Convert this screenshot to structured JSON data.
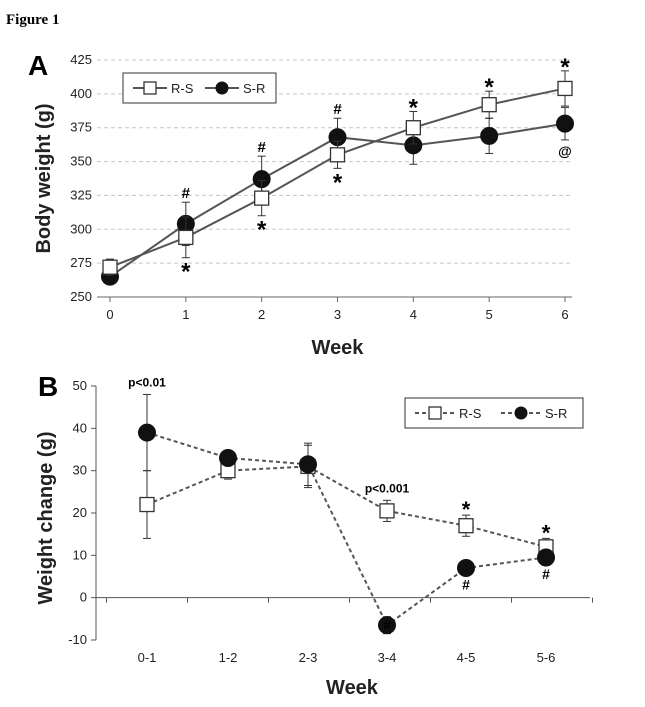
{
  "figure_label": "Figure 1",
  "chart_data": [
    {
      "type": "line",
      "panel": "A",
      "xlabel": "Week",
      "ylabel": "Body weight (g)",
      "x": [
        0,
        1,
        2,
        3,
        4,
        5,
        6
      ],
      "xticks": [
        "0",
        "1",
        "2",
        "3",
        "4",
        "5",
        "6"
      ],
      "ylim": [
        250,
        425
      ],
      "yticks": [
        "250",
        "275",
        "300",
        "325",
        "350",
        "375",
        "400",
        "425"
      ],
      "grid": true,
      "legend_position": "top-left",
      "series": [
        {
          "name": "R-S",
          "marker": "open-square",
          "values": [
            272,
            294,
            323,
            355,
            375,
            392,
            404
          ],
          "errors": [
            6,
            15,
            13,
            10,
            12,
            10,
            13
          ]
        },
        {
          "name": "S-R",
          "marker": "filled-circle",
          "values": [
            265,
            304,
            337,
            368,
            362,
            369,
            378
          ],
          "errors": [
            5,
            16,
            17,
            14,
            14,
            13,
            12
          ]
        }
      ],
      "annotations": [
        {
          "x": 1,
          "text": "#",
          "pos": "above"
        },
        {
          "x": 1,
          "text": "*",
          "pos": "below"
        },
        {
          "x": 2,
          "text": "#",
          "pos": "above"
        },
        {
          "x": 2,
          "text": "*",
          "pos": "below"
        },
        {
          "x": 3,
          "text": "#",
          "pos": "above"
        },
        {
          "x": 3,
          "text": "*",
          "pos": "below"
        },
        {
          "x": 4,
          "text": "*",
          "pos": "above"
        },
        {
          "x": 5,
          "text": "*",
          "pos": "above"
        },
        {
          "x": 6,
          "text": "*",
          "pos": "above"
        },
        {
          "x": 6,
          "text": "@",
          "pos": "below"
        }
      ]
    },
    {
      "type": "line",
      "panel": "B",
      "xlabel": "Week",
      "ylabel": "Weight change (g)",
      "categories": [
        "0-1",
        "1-2",
        "2-3",
        "3-4",
        "4-5",
        "5-6"
      ],
      "ylim": [
        -10,
        50
      ],
      "yticks": [
        "-10",
        "0",
        "10",
        "20",
        "30",
        "40",
        "50"
      ],
      "grid": false,
      "legend_position": "top-right",
      "series": [
        {
          "name": "R-S",
          "marker": "open-square",
          "values": [
            22,
            30,
            31,
            20.5,
            17,
            12
          ],
          "errors": [
            8,
            2,
            5,
            2.5,
            2.5,
            2
          ]
        },
        {
          "name": "S-R",
          "marker": "filled-circle",
          "values": [
            39,
            33,
            31.5,
            -6.5,
            7,
            9.5
          ],
          "errors": [
            9,
            1.5,
            5,
            2,
            1.5,
            1.5
          ]
        }
      ],
      "annotations": [
        {
          "category": "0-1",
          "text": "p<0.01",
          "kind": "pvalue"
        },
        {
          "category": "3-4",
          "text": "p<0.001",
          "kind": "pvalue"
        },
        {
          "category": "3-4",
          "text": "#",
          "kind": "inner"
        },
        {
          "category": "4-5",
          "text": "*",
          "pos": "above"
        },
        {
          "category": "4-5",
          "text": "#",
          "pos": "below"
        },
        {
          "category": "5-6",
          "text": "*",
          "pos": "above"
        },
        {
          "category": "5-6",
          "text": "#",
          "pos": "below"
        }
      ]
    }
  ]
}
